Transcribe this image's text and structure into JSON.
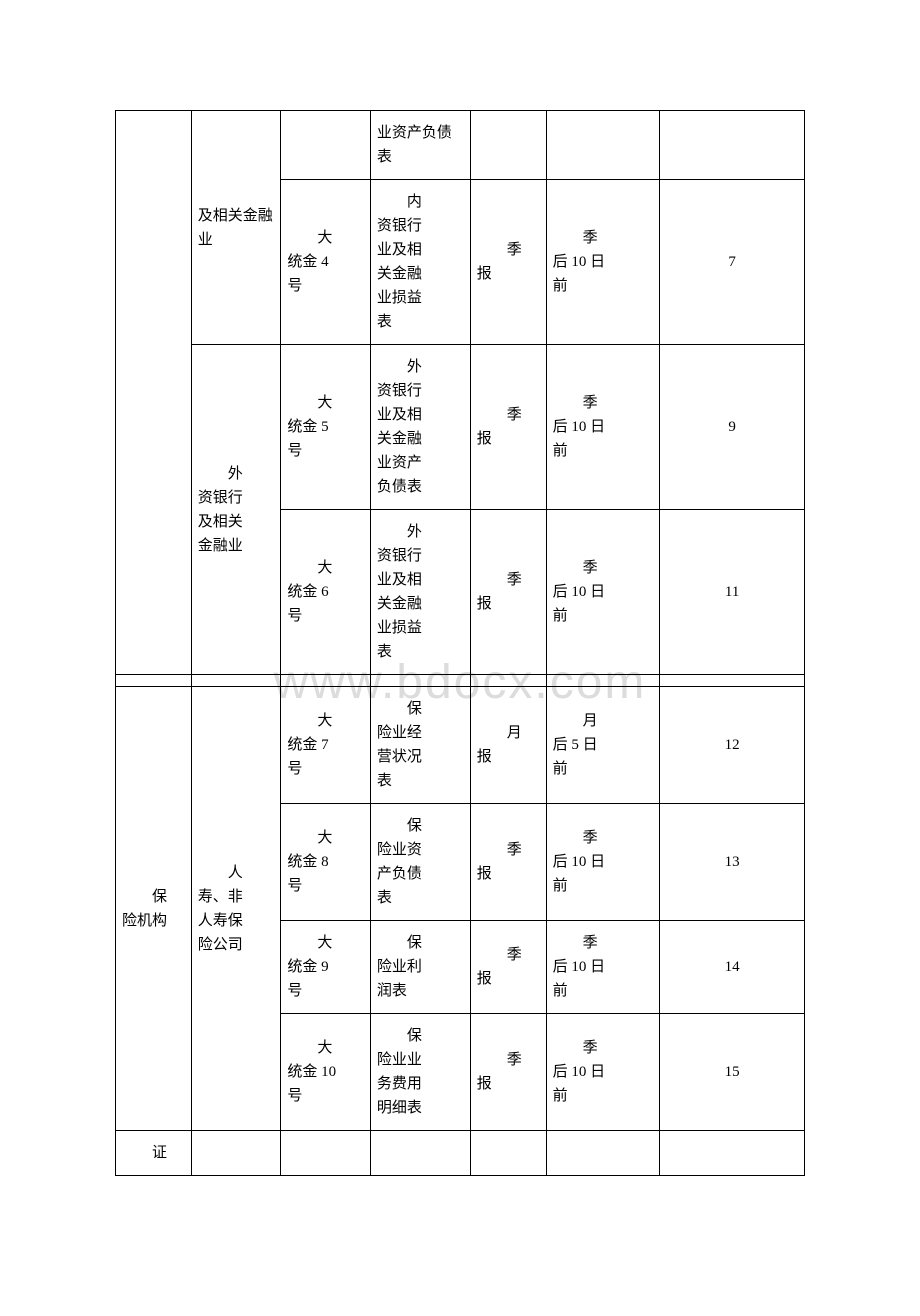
{
  "watermark": "www.bdocx.com",
  "table": {
    "columns": [
      "col1",
      "col2",
      "col3",
      "col4",
      "col5",
      "col6",
      "col7"
    ],
    "rows": [
      {
        "cells": [
          {
            "text": "",
            "rowspan": 4,
            "col": 1
          },
          {
            "text": "及相关金融业",
            "rowspan": 1,
            "col": 2,
            "indent": false
          },
          {
            "text": "",
            "rowspan": 1,
            "col": 3
          },
          {
            "text": "业资产负债表",
            "rowspan": 1,
            "col": 4,
            "indent": false
          },
          {
            "text": "",
            "rowspan": 1,
            "col": 5
          },
          {
            "text": "",
            "rowspan": 1,
            "col": 6
          },
          {
            "text": "",
            "rowspan": 1,
            "col": 7
          }
        ]
      },
      {
        "cells": [
          {
            "text": "",
            "col": 2,
            "rowspan": 1,
            "empty_merge": true
          },
          {
            "text": "大统金 4号",
            "col": 3,
            "indent": true,
            "label": "大统金4号"
          },
          {
            "text": "内资银行业及相关金融业损益表",
            "col": 4,
            "indent": true
          },
          {
            "text": "季报",
            "col": 5,
            "indent": true
          },
          {
            "text": "季后 10 日前",
            "col": 6,
            "indent": true
          },
          {
            "text": "7",
            "col": 7,
            "center": true
          }
        ]
      },
      {
        "cells": [
          {
            "text": "外资银行及相关金融业",
            "col": 2,
            "rowspan": 2,
            "indent": true
          },
          {
            "text": "大统金 5号",
            "col": 3,
            "indent": true
          },
          {
            "text": "外资银行业及相关金融业资产负债表",
            "col": 4,
            "indent": true
          },
          {
            "text": "季报",
            "col": 5,
            "indent": true
          },
          {
            "text": "季后 10 日前",
            "col": 6,
            "indent": true
          },
          {
            "text": "9",
            "col": 7,
            "center": true
          }
        ]
      },
      {
        "cells": [
          {
            "text": "大统金 6号",
            "col": 3,
            "indent": true
          },
          {
            "text": "外资银行业及相关金融业损益表",
            "col": 4,
            "indent": true
          },
          {
            "text": "季报",
            "col": 5,
            "indent": true
          },
          {
            "text": "季后 10 日前",
            "col": 6,
            "indent": true
          },
          {
            "text": "11",
            "col": 7,
            "center": true
          }
        ]
      },
      {
        "spacer": true,
        "cells": [
          {
            "text": "",
            "col": 1
          },
          {
            "text": "",
            "col": 2
          },
          {
            "text": "",
            "col": 3
          },
          {
            "text": "",
            "col": 4
          },
          {
            "text": "",
            "col": 5
          },
          {
            "text": "",
            "col": 6
          },
          {
            "text": "",
            "col": 7
          }
        ]
      },
      {
        "cells": [
          {
            "text": "保险机构",
            "col": 1,
            "rowspan": 4,
            "indent": true
          },
          {
            "text": "人寿、非人寿保险公司",
            "col": 2,
            "rowspan": 4,
            "indent": true
          },
          {
            "text": "大统金 7号",
            "col": 3,
            "indent": true
          },
          {
            "text": "保险业经营状况表",
            "col": 4,
            "indent": true
          },
          {
            "text": "月报",
            "col": 5,
            "indent": true
          },
          {
            "text": "月后 5 日前",
            "col": 6,
            "indent": true
          },
          {
            "text": "12",
            "col": 7,
            "center": true
          }
        ]
      },
      {
        "cells": [
          {
            "text": "大统金 8号",
            "col": 3,
            "indent": true
          },
          {
            "text": "保险业资产负债表",
            "col": 4,
            "indent": true
          },
          {
            "text": "季报",
            "col": 5,
            "indent": true
          },
          {
            "text": "季后 10 日前",
            "col": 6,
            "indent": true
          },
          {
            "text": "13",
            "col": 7,
            "center": true
          }
        ]
      },
      {
        "cells": [
          {
            "text": "大统金 9号",
            "col": 3,
            "indent": true
          },
          {
            "text": "保险业利润表",
            "col": 4,
            "indent": true
          },
          {
            "text": "季报",
            "col": 5,
            "indent": true
          },
          {
            "text": "季后 10 日前",
            "col": 6,
            "indent": true
          },
          {
            "text": "14",
            "col": 7,
            "center": true
          }
        ]
      },
      {
        "cells": [
          {
            "text": "大统金 10号",
            "col": 3,
            "indent": true
          },
          {
            "text": "保险业业务费用明细表",
            "col": 4,
            "indent": true
          },
          {
            "text": "季报",
            "col": 5,
            "indent": true
          },
          {
            "text": "季后 10 日前",
            "col": 6,
            "indent": true
          },
          {
            "text": "15",
            "col": 7,
            "center": true
          }
        ]
      },
      {
        "cells": [
          {
            "text": "证",
            "col": 1,
            "indent": true
          },
          {
            "text": "",
            "col": 2
          },
          {
            "text": "",
            "col": 3
          },
          {
            "text": "",
            "col": 4
          },
          {
            "text": "",
            "col": 5
          },
          {
            "text": "",
            "col": 6
          },
          {
            "text": "",
            "col": 7
          }
        ]
      }
    ]
  }
}
